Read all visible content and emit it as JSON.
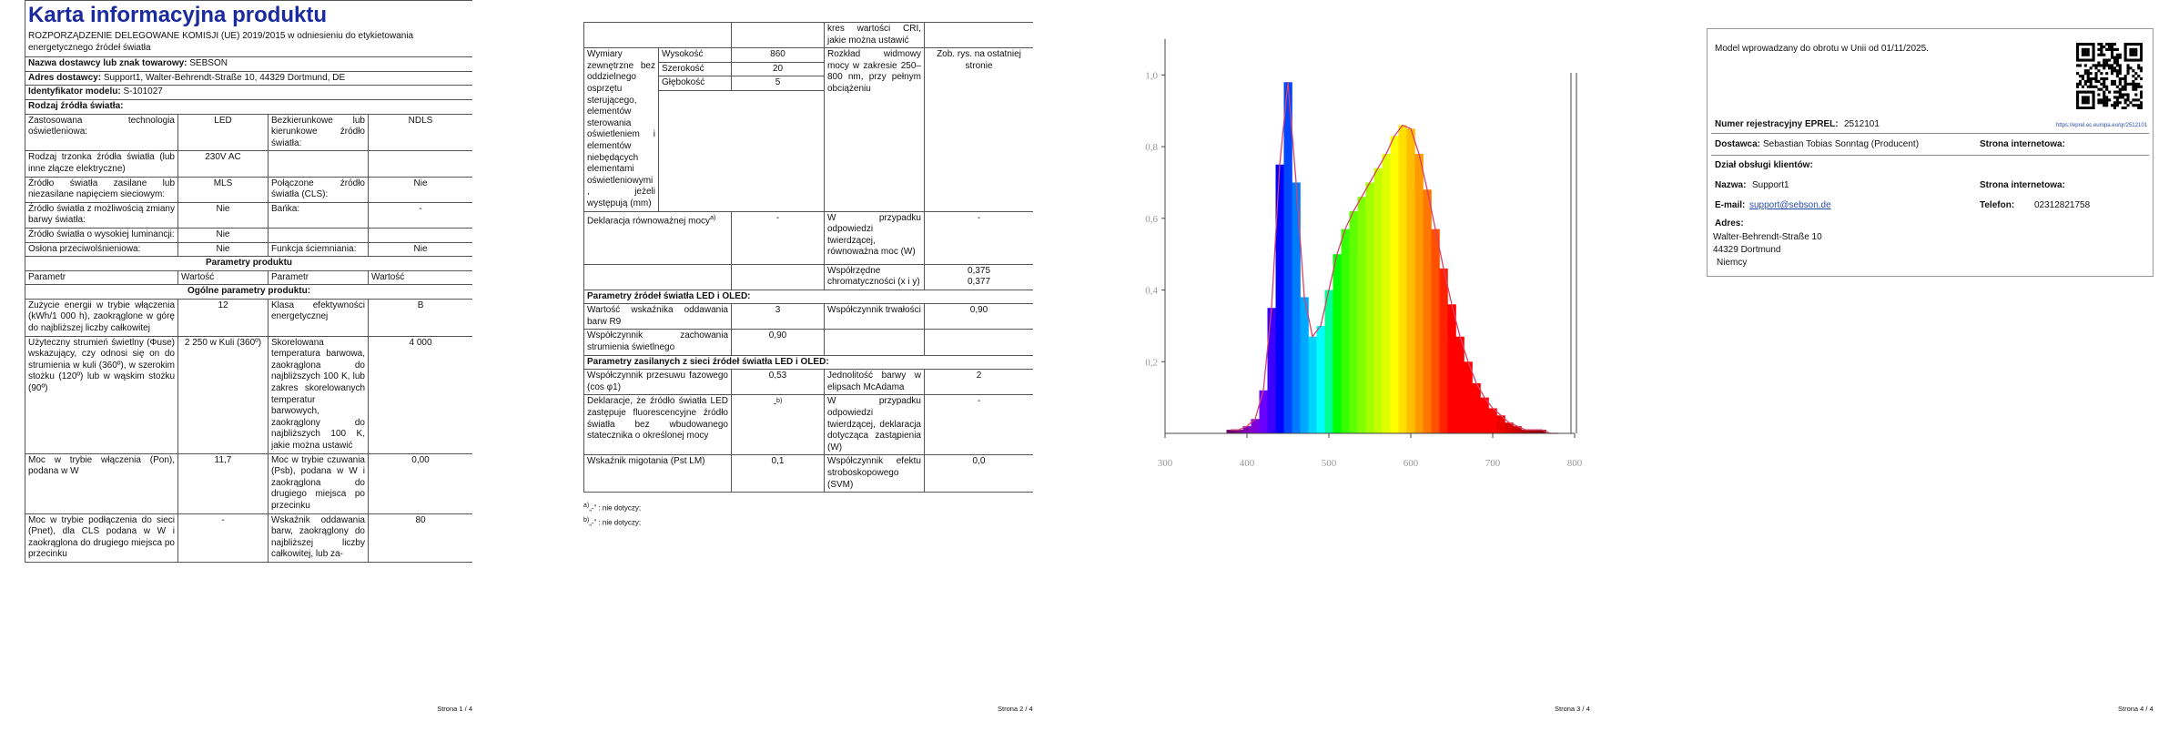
{
  "page1": {
    "title": "Karta informacyjna produktu",
    "regulation": "ROZPORZĄDZENIE DELEGOWANE KOMISJI (UE) 2019/2015 w odniesieniu do etykietowania energetycznego źródeł światła",
    "info_rows": [
      {
        "label": "Nazwa dostawcy lub znak towarowy:",
        "value": "SEBSON"
      },
      {
        "label": "Adres dostawcy:",
        "value": "Support1, Walter-Behrendt-Straße 10, 44329 Dortmund, DE"
      },
      {
        "label": "Identyfikator modelu:",
        "value": "S-101027"
      }
    ],
    "source_heading": "Rodzaj źródła światła:",
    "source_rows": [
      [
        "Zastosowana technologia oświetleniowa:",
        "LED",
        "Bezkierunkowe lub kierunkowe źródło światła:",
        "NDLS"
      ],
      [
        "Rodzaj trzonka źródła światła (lub inne złącze elektryczne)",
        "230V AC",
        null,
        null
      ],
      [
        "Źródło światła zasilane lub niezasilane napięciem sieciowym:",
        "MLS",
        "Połączone źródło światła (CLS):",
        "Nie"
      ],
      [
        "Źródło światła z możliwością zmiany barwy światła:",
        "Nie",
        "Bańka:",
        "-"
      ],
      [
        "Źródło światła o wysokiej luminancji:",
        "Nie",
        null,
        null
      ],
      [
        "Osłona przeciwolśnieniowa:",
        "Nie",
        "Funkcja ściemniania:",
        "Nie"
      ]
    ],
    "params_heading": "Parametry produktu",
    "params_columns": [
      "Parametr",
      "Wartość",
      "Parametr",
      "Wartość"
    ],
    "general_heading": "Ogólne parametry produktu:",
    "general_rows": [
      [
        "Zużycie energii w trybie włączenia (kWh/1 000 h), zaokrąglone w górę do najbliższej liczby całkowitej",
        "12",
        "Klasa efektywności energetycznej",
        "B"
      ],
      [
        "Użyteczny strumień świetlny (Φuse) wskazujący, czy odnosi się on do strumienia w kuli (360º), w szerokim stożku (120º) lub w wąskim stożku (90º)",
        "2 250 w Kuli (360º)",
        "Skorelowana temperatura barwowa, zaokrąglona do najbliższych 100 K, lub zakres skorelowanych temperatur barwowych, zaokrąglony do najbliższych 100 K, jakie można ustawić",
        "4 000"
      ],
      [
        "Moc w trybie włączenia (Pon), podana w W",
        "11,7",
        "Moc w trybie czuwania (Psb), podana w W i zaokrąglona do drugiego miejsca po przecinku",
        "0,00"
      ],
      [
        "Moc w trybie podłączenia do sieci (Pnet), dla CLS podana w W i zaokrąglona do drugiego miejsca po przecinku",
        "-",
        "Wskaźnik oddawania barw, zaokrąglony do najbliższej liczby całkowitej, lub za-",
        "80"
      ]
    ],
    "footer": "Strona 1 / 4"
  },
  "page2": {
    "continued": "kres wartości CRI, jakie można ustawić",
    "dimensions_label": "Wymiary zewnętrzne bez oddzielnego osprzętu sterującego, elementów sterowania oświetleniem i elementów niebędących elementami oświetleniowymi, jeżeli występują (mm)",
    "dimensions": [
      [
        "Wysokość",
        "860"
      ],
      [
        "Szerokość",
        "20"
      ],
      [
        "Głębokość",
        "5"
      ]
    ],
    "spectrum_label": "Rozkład widmowy mocy w zakresie 250–800 nm, przy pełnym obciążeniu",
    "spectrum_value": "Zob. rys. na ostatniej stronie",
    "equivalent_label": "Deklaracja równoważnej mocy",
    "equivalent_note": "a)",
    "equivalent_value": "-",
    "equivalent_power_label": "W przypadku odpowiedzi twierdzącej, równoważna moc (W)",
    "equivalent_power": "-",
    "chromaticity_label": "Współrzędne chromatyczności (x i y)",
    "chromaticity": [
      "0,375",
      "0,377"
    ],
    "led_heading": "Parametry źródeł światła LED i OLED:",
    "led_rows": [
      [
        "Wartość wskaźnika oddawania barw R9",
        "3",
        "Współczynnik trwałości",
        "0,90"
      ],
      [
        "Współczynnik zachowania strumienia świetlnego",
        "0,90",
        null,
        null
      ]
    ],
    "mains_heading": "Parametry zasilanych z sieci źródeł światła LED i OLED:",
    "mains_rows": [
      [
        "Współczynnik przesuwu fazowego (cos φ1)",
        "0,53",
        "Jednolitość barwy w elipsach McAdama",
        "2"
      ],
      [
        "Deklaracje, że źródło światła LED zastępuje fluorescencyjne źródło światła bez wbudowanego statecznika o określonej mocy",
        {
          "text": "-",
          "note": "b)"
        },
        "W przypadku odpowiedzi twierdzącej, deklaracja dotycząca zastąpienia (W)",
        "-"
      ],
      [
        "Wskaźnik migotania (Pst LM)",
        "0,1",
        "Współczynnik efektu stroboskopowego (SVM)",
        "0,0"
      ]
    ],
    "footnotes": [
      {
        "mark": "a)",
        "text": "„-” : nie dotyczy;"
      },
      {
        "mark": "b)",
        "text": "„-” : nie dotyczy;"
      }
    ],
    "footer": "Strona 2 / 4"
  },
  "chart_data": {
    "type": "area",
    "x": [
      380,
      390,
      400,
      410,
      420,
      430,
      440,
      450,
      460,
      470,
      480,
      490,
      500,
      510,
      520,
      530,
      540,
      550,
      560,
      570,
      580,
      590,
      600,
      610,
      620,
      630,
      640,
      650,
      660,
      670,
      680,
      690,
      700,
      710,
      720,
      730,
      740,
      750,
      760,
      770,
      780
    ],
    "values": [
      0.01,
      0.01,
      0.02,
      0.04,
      0.12,
      0.35,
      0.75,
      0.98,
      0.7,
      0.38,
      0.27,
      0.3,
      0.4,
      0.5,
      0.57,
      0.62,
      0.66,
      0.7,
      0.74,
      0.78,
      0.83,
      0.86,
      0.85,
      0.78,
      0.68,
      0.57,
      0.46,
      0.36,
      0.27,
      0.2,
      0.14,
      0.1,
      0.07,
      0.05,
      0.03,
      0.02,
      0.01,
      0.01,
      0.01,
      0,
      0
    ],
    "color": "#d9406a",
    "xlim": [
      300,
      800
    ],
    "ylim": [
      0,
      1.1
    ],
    "xticks": [
      300,
      400,
      500,
      600,
      700,
      800
    ],
    "yticks": [
      {
        "value": 1,
        "label": "1,0"
      },
      {
        "value": 0.8,
        "label": "0,8"
      },
      {
        "value": 0.6,
        "label": "0,6"
      },
      {
        "value": 0.4,
        "label": "0,4"
      },
      {
        "value": 0.2,
        "label": "0,2"
      }
    ]
  },
  "page3": {
    "footer": "Strona 3 / 4"
  },
  "page4": {
    "market_note": "Model wprowadzany do obrotu w Unii od 01/11/2025.",
    "eprel_label": "Numer rejestracyjny EPREL:",
    "eprel": "2512101",
    "eprel_url": "https://eprel.ec.europa.eu/qr/2512101",
    "supplier_label": "Dostawca:",
    "supplier": "Sebastian Tobias Sonntag (Producent)",
    "website_label": "Strona internetowa:",
    "service_heading": "Dział obsługi klientów:",
    "name_label": "Nazwa:",
    "name": "Support1",
    "service_website_label": "Strona internetowa:",
    "email_label": "E-mail:",
    "email": "support@sebson.de",
    "phone_label": "Telefon:",
    "phone": "02312821758",
    "address_label": "Adres:",
    "address": [
      "Walter-Behrendt-Straße 10",
      "44329 Dortmund",
      "Niemcy"
    ],
    "footer": "Strona 4 / 4"
  }
}
